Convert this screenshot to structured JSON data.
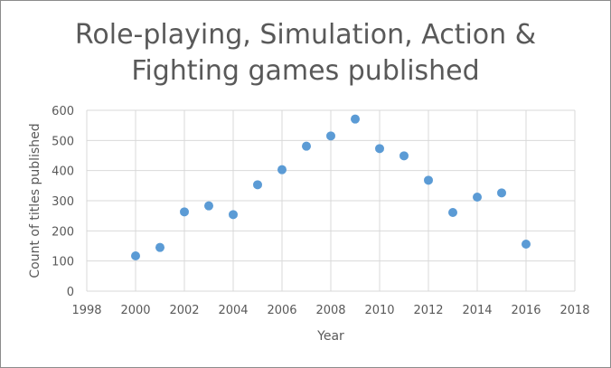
{
  "chart_data": {
    "type": "scatter",
    "title_lines": [
      "Role-playing, Simulation, Action &",
      "Fighting games published"
    ],
    "xlabel": "Year",
    "ylabel": "Count of titles published",
    "xlim": [
      1998,
      2018
    ],
    "ylim": [
      0,
      600
    ],
    "xticks": [
      1998,
      2000,
      2002,
      2004,
      2006,
      2008,
      2010,
      2012,
      2014,
      2016,
      2018
    ],
    "yticks": [
      0,
      100,
      200,
      300,
      400,
      500,
      600
    ],
    "grid": true,
    "legend": "none",
    "marker_color": "#5b9bd5",
    "points": [
      {
        "x": 2000,
        "y": 117
      },
      {
        "x": 2001,
        "y": 145
      },
      {
        "x": 2002,
        "y": 263
      },
      {
        "x": 2003,
        "y": 283
      },
      {
        "x": 2004,
        "y": 254
      },
      {
        "x": 2005,
        "y": 353
      },
      {
        "x": 2006,
        "y": 403
      },
      {
        "x": 2007,
        "y": 481
      },
      {
        "x": 2008,
        "y": 515
      },
      {
        "x": 2009,
        "y": 571
      },
      {
        "x": 2010,
        "y": 473
      },
      {
        "x": 2011,
        "y": 449
      },
      {
        "x": 2012,
        "y": 368
      },
      {
        "x": 2013,
        "y": 261
      },
      {
        "x": 2014,
        "y": 312
      },
      {
        "x": 2015,
        "y": 326
      },
      {
        "x": 2016,
        "y": 156
      }
    ]
  }
}
